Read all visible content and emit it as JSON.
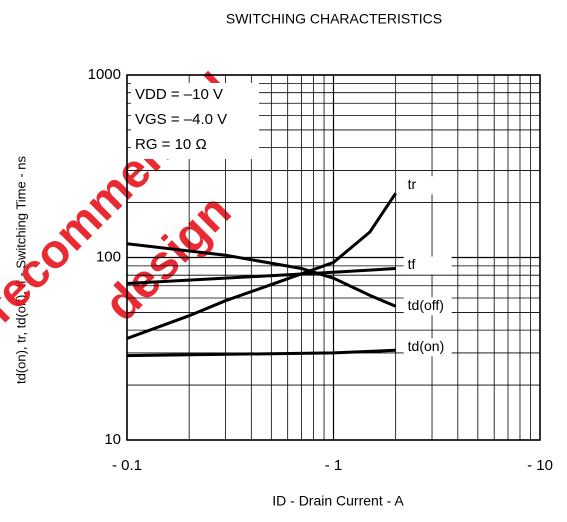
{
  "chart_data": {
    "type": "line",
    "title": "SWITCHING CHARACTERISTICS",
    "x_label": "ID - Drain Current - A",
    "y_label": "td(on), tr, td(off), tf - Switching Time - ns",
    "annotations": [
      "VDD = –10 V",
      "VGS = –4.0 V",
      "RG = 10 Ω"
    ],
    "watermark": [
      "recommended",
      "design"
    ],
    "log_x": true,
    "log_y": true,
    "grid": true,
    "xlim": [
      0.1,
      10
    ],
    "ylim": [
      10,
      1000
    ],
    "xticks": [
      {
        "value": 0.1,
        "label": "- 0.1"
      },
      {
        "value": 1,
        "label": "- 1"
      },
      {
        "value": 10,
        "label": "- 10"
      }
    ],
    "yticks": [
      10,
      100,
      1000
    ],
    "series": [
      {
        "name": "tr",
        "color": "#000000",
        "x": [
          0.1,
          0.2,
          0.3,
          0.5,
          1,
          1.5,
          2
        ],
        "values": [
          36,
          48,
          58,
          71,
          94,
          138,
          225
        ]
      },
      {
        "name": "tf",
        "color": "#000000",
        "x": [
          0.1,
          1,
          2
        ],
        "values": [
          72,
          83,
          87
        ]
      },
      {
        "name": "td(off)",
        "color": "#000000",
        "x": [
          0.1,
          0.3,
          0.7,
          1,
          1.5,
          2
        ],
        "values": [
          119,
          103,
          87,
          77,
          62,
          54
        ]
      },
      {
        "name": "td(on)",
        "color": "#000000",
        "x": [
          0.1,
          1,
          2
        ],
        "values": [
          29,
          30,
          31
        ]
      }
    ]
  }
}
